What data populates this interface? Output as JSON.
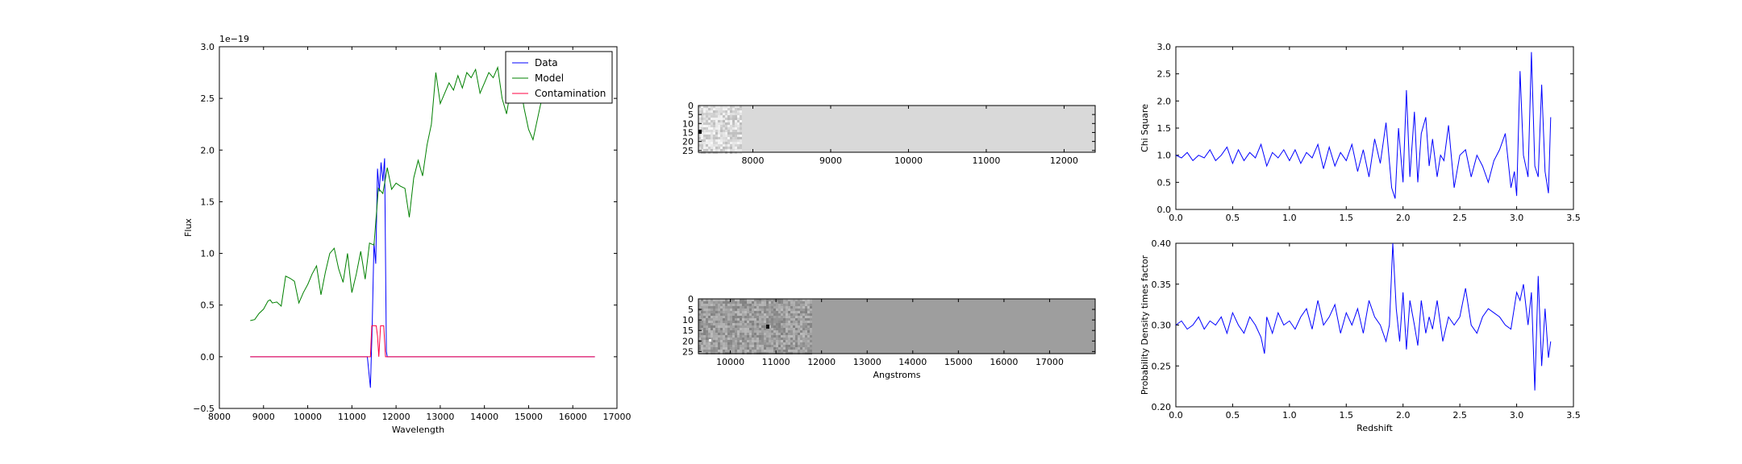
{
  "chart_data": [
    {
      "id": "spectrum",
      "type": "line",
      "xlabel": "Wavelength",
      "ylabel": "Flux",
      "offset_text": "1e−19",
      "xlim": [
        8000,
        17000
      ],
      "ylim": [
        -0.5,
        3.0
      ],
      "xticks": [
        "8000",
        "9000",
        "10000",
        "11000",
        "12000",
        "13000",
        "14000",
        "15000",
        "16000",
        "17000"
      ],
      "yticks": [
        "−0.5",
        "0.0",
        "0.5",
        "1.0",
        "1.5",
        "2.0",
        "2.5",
        "3.0"
      ],
      "legend": {
        "position": "top-right",
        "entries": [
          "Data",
          "Model",
          "Contamination"
        ]
      },
      "series": [
        {
          "name": "Data",
          "color": "#0000ff",
          "x": [
            8700,
            11350,
            11420,
            11460,
            11500,
            11540,
            11580,
            11620,
            11660,
            11700,
            11740,
            11780,
            11800,
            16500
          ],
          "y": [
            0.0,
            0.0,
            -0.3,
            0.3,
            1.1,
            0.9,
            1.82,
            1.6,
            1.88,
            1.7,
            1.92,
            0.05,
            0.0,
            0.0
          ]
        },
        {
          "name": "Model",
          "color": "#008000",
          "x": [
            8700,
            8800,
            8900,
            9000,
            9100,
            9150,
            9200,
            9300,
            9400,
            9500,
            9600,
            9700,
            9800,
            9900,
            10000,
            10100,
            10200,
            10300,
            10400,
            10500,
            10600,
            10700,
            10800,
            10900,
            11000,
            11100,
            11200,
            11300,
            11400,
            11500,
            11600,
            11700,
            11800,
            11900,
            12000,
            12100,
            12200,
            12300,
            12400,
            12500,
            12600,
            12700,
            12800,
            12900,
            13000,
            13100,
            13200,
            13300,
            13400,
            13500,
            13600,
            13700,
            13800,
            13900,
            14000,
            14100,
            14200,
            14300,
            14400,
            14500,
            14600,
            14700,
            14800,
            14900,
            15000,
            15100,
            15200,
            15300
          ],
          "y": [
            0.35,
            0.36,
            0.42,
            0.46,
            0.54,
            0.55,
            0.52,
            0.53,
            0.49,
            0.78,
            0.76,
            0.73,
            0.52,
            0.62,
            0.7,
            0.8,
            0.88,
            0.6,
            0.82,
            1.0,
            1.05,
            0.85,
            0.72,
            1.0,
            0.62,
            0.8,
            1.02,
            0.75,
            1.1,
            1.08,
            1.63,
            1.58,
            1.83,
            1.62,
            1.68,
            1.65,
            1.63,
            1.35,
            1.73,
            1.9,
            1.75,
            2.05,
            2.25,
            2.75,
            2.45,
            2.55,
            2.65,
            2.58,
            2.72,
            2.6,
            2.75,
            2.7,
            2.78,
            2.55,
            2.65,
            2.75,
            2.7,
            2.8,
            2.5,
            2.35,
            2.6,
            2.55,
            2.65,
            2.4,
            2.2,
            2.1,
            2.3,
            2.5
          ]
        },
        {
          "name": "Contamination",
          "color": "#ff0040",
          "x": [
            8700,
            11350,
            11420,
            11450,
            11550,
            11580,
            11610,
            11650,
            11720,
            11760,
            11800,
            16500
          ],
          "y": [
            0.0,
            0.0,
            0.0,
            0.3,
            0.3,
            0.2,
            0.0,
            0.3,
            0.3,
            0.0,
            0.0,
            0.0
          ]
        }
      ]
    },
    {
      "id": "image_top",
      "type": "heatmap",
      "xlim": [
        7300,
        12400
      ],
      "ylim": [
        0,
        26
      ],
      "xticks": [
        "8000",
        "9000",
        "10000",
        "11000",
        "12000"
      ],
      "yticks": [
        "0",
        "5",
        "10",
        "15",
        "20",
        "25"
      ],
      "background": "#d9d9d9",
      "noise_extent": [
        7300,
        7850
      ]
    },
    {
      "id": "image_bottom",
      "type": "heatmap",
      "xlabel": "Angstroms",
      "xlim": [
        9300,
        18000
      ],
      "ylim": [
        0,
        26
      ],
      "xticks": [
        "10000",
        "11000",
        "12000",
        "13000",
        "14000",
        "15000",
        "16000",
        "17000"
      ],
      "yticks": [
        "0",
        "5",
        "10",
        "15",
        "20",
        "25"
      ],
      "background": "#9e9e9e",
      "noise_extent": [
        9300,
        11750
      ]
    },
    {
      "id": "chisq",
      "type": "line",
      "ylabel": "Chi Square",
      "xlim": [
        0.0,
        3.5
      ],
      "ylim": [
        0.0,
        3.0
      ],
      "xticks": [
        "0.0",
        "0.5",
        "1.0",
        "1.5",
        "2.0",
        "2.5",
        "3.0",
        "3.5"
      ],
      "yticks": [
        "0.0",
        "0.5",
        "1.0",
        "1.5",
        "2.0",
        "2.5",
        "3.0"
      ],
      "series": [
        {
          "color": "#0000ff",
          "x": [
            0.0,
            0.05,
            0.1,
            0.15,
            0.2,
            0.25,
            0.3,
            0.35,
            0.4,
            0.45,
            0.5,
            0.55,
            0.6,
            0.65,
            0.7,
            0.75,
            0.8,
            0.85,
            0.9,
            0.95,
            1.0,
            1.05,
            1.1,
            1.15,
            1.2,
            1.25,
            1.3,
            1.35,
            1.4,
            1.45,
            1.5,
            1.55,
            1.6,
            1.65,
            1.7,
            1.75,
            1.8,
            1.85,
            1.9,
            1.93,
            1.96,
            2.0,
            2.03,
            2.06,
            2.1,
            2.13,
            2.16,
            2.2,
            2.23,
            2.26,
            2.3,
            2.33,
            2.36,
            2.4,
            2.45,
            2.5,
            2.55,
            2.6,
            2.65,
            2.7,
            2.75,
            2.8,
            2.85,
            2.9,
            2.95,
            2.98,
            3.0,
            3.03,
            3.06,
            3.1,
            3.13,
            3.16,
            3.19,
            3.22,
            3.25,
            3.28,
            3.3
          ],
          "y": [
            1.0,
            0.95,
            1.05,
            0.9,
            1.0,
            0.95,
            1.1,
            0.9,
            1.0,
            1.15,
            0.85,
            1.1,
            0.9,
            1.05,
            0.95,
            1.2,
            0.8,
            1.05,
            0.95,
            1.1,
            0.9,
            1.1,
            0.85,
            1.05,
            0.95,
            1.2,
            0.75,
            1.15,
            0.8,
            1.05,
            0.9,
            1.2,
            0.7,
            1.1,
            0.6,
            1.3,
            0.85,
            1.6,
            0.4,
            0.2,
            1.5,
            0.5,
            2.2,
            0.6,
            1.8,
            0.5,
            1.4,
            1.7,
            0.8,
            1.3,
            0.6,
            1.0,
            0.9,
            1.55,
            0.4,
            1.0,
            1.1,
            0.6,
            1.0,
            0.8,
            0.5,
            0.9,
            1.1,
            1.4,
            0.4,
            0.7,
            0.25,
            2.55,
            1.0,
            0.6,
            2.9,
            0.8,
            0.6,
            2.3,
            0.7,
            0.3,
            1.7
          ]
        }
      ]
    },
    {
      "id": "prob",
      "type": "line",
      "xlabel": "Redshift",
      "ylabel": "Probability Density times factor",
      "xlim": [
        0.0,
        3.5
      ],
      "ylim": [
        0.2,
        0.4
      ],
      "xticks": [
        "0.0",
        "0.5",
        "1.0",
        "1.5",
        "2.0",
        "2.5",
        "3.0",
        "3.5"
      ],
      "yticks": [
        "0.20",
        "0.25",
        "0.30",
        "0.35",
        "0.40"
      ],
      "series": [
        {
          "color": "#0000ff",
          "x": [
            0.0,
            0.05,
            0.1,
            0.15,
            0.2,
            0.25,
            0.3,
            0.35,
            0.4,
            0.45,
            0.5,
            0.55,
            0.6,
            0.65,
            0.7,
            0.75,
            0.78,
            0.8,
            0.85,
            0.9,
            0.95,
            1.0,
            1.05,
            1.1,
            1.15,
            1.2,
            1.25,
            1.3,
            1.35,
            1.4,
            1.45,
            1.5,
            1.55,
            1.6,
            1.65,
            1.7,
            1.75,
            1.8,
            1.85,
            1.88,
            1.91,
            1.94,
            1.97,
            2.0,
            2.03,
            2.06,
            2.1,
            2.13,
            2.16,
            2.2,
            2.23,
            2.26,
            2.3,
            2.35,
            2.4,
            2.45,
            2.5,
            2.55,
            2.6,
            2.65,
            2.7,
            2.75,
            2.8,
            2.85,
            2.9,
            2.95,
            3.0,
            3.03,
            3.06,
            3.1,
            3.13,
            3.16,
            3.19,
            3.22,
            3.25,
            3.28,
            3.3
          ],
          "y": [
            0.3,
            0.305,
            0.295,
            0.3,
            0.31,
            0.295,
            0.305,
            0.3,
            0.31,
            0.29,
            0.315,
            0.3,
            0.29,
            0.31,
            0.3,
            0.285,
            0.265,
            0.31,
            0.29,
            0.315,
            0.3,
            0.305,
            0.295,
            0.31,
            0.32,
            0.295,
            0.33,
            0.3,
            0.31,
            0.325,
            0.29,
            0.315,
            0.3,
            0.32,
            0.29,
            0.33,
            0.31,
            0.3,
            0.28,
            0.3,
            0.4,
            0.32,
            0.28,
            0.34,
            0.27,
            0.33,
            0.3,
            0.275,
            0.33,
            0.29,
            0.31,
            0.295,
            0.33,
            0.28,
            0.31,
            0.3,
            0.31,
            0.345,
            0.3,
            0.29,
            0.31,
            0.32,
            0.315,
            0.31,
            0.3,
            0.295,
            0.34,
            0.33,
            0.35,
            0.3,
            0.34,
            0.22,
            0.36,
            0.25,
            0.32,
            0.26,
            0.28
          ]
        }
      ]
    }
  ]
}
